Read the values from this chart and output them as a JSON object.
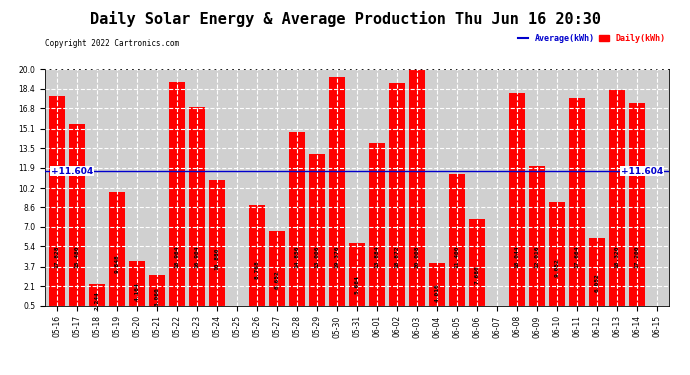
{
  "title": "Daily Solar Energy & Average Production Thu Jun 16 20:30",
  "copyright": "Copyright 2022 Cartronics.com",
  "average_label": "Average(kWh)",
  "daily_label": "Daily(kWh)",
  "average_value": 11.604,
  "ylim": [
    0.5,
    20.0
  ],
  "yticks": [
    0.5,
    2.1,
    3.7,
    5.4,
    7.0,
    8.6,
    10.2,
    11.9,
    13.5,
    15.1,
    16.8,
    18.4,
    20.0
  ],
  "bar_color": "#ff0000",
  "avg_line_color": "#0000cc",
  "categories": [
    "05-16",
    "05-17",
    "05-18",
    "05-19",
    "05-20",
    "05-21",
    "05-22",
    "05-23",
    "05-24",
    "05-25",
    "05-26",
    "05-27",
    "05-28",
    "05-29",
    "05-30",
    "05-31",
    "06-01",
    "06-02",
    "06-03",
    "06-04",
    "06-05",
    "06-06",
    "06-07",
    "06-08",
    "06-09",
    "06-10",
    "06-11",
    "06-12",
    "06-13",
    "06-14",
    "06-15"
  ],
  "values": [
    17.828,
    15.48,
    2.244,
    9.848,
    4.164,
    3.06,
    18.964,
    16.904,
    10.88,
    0.0,
    8.768,
    6.652,
    14.856,
    13.006,
    19.376,
    5.664,
    13.884,
    18.872,
    20.008,
    4.016,
    11.4,
    7.68,
    0.0,
    18.044,
    12.016,
    9.052,
    17.664,
    6.052,
    18.32,
    17.2,
    0.0
  ],
  "title_fontsize": 11,
  "tick_fontsize": 5.5,
  "value_fontsize": 4.5,
  "avg_fontsize": 6.5,
  "copyright_fontsize": 5.5
}
